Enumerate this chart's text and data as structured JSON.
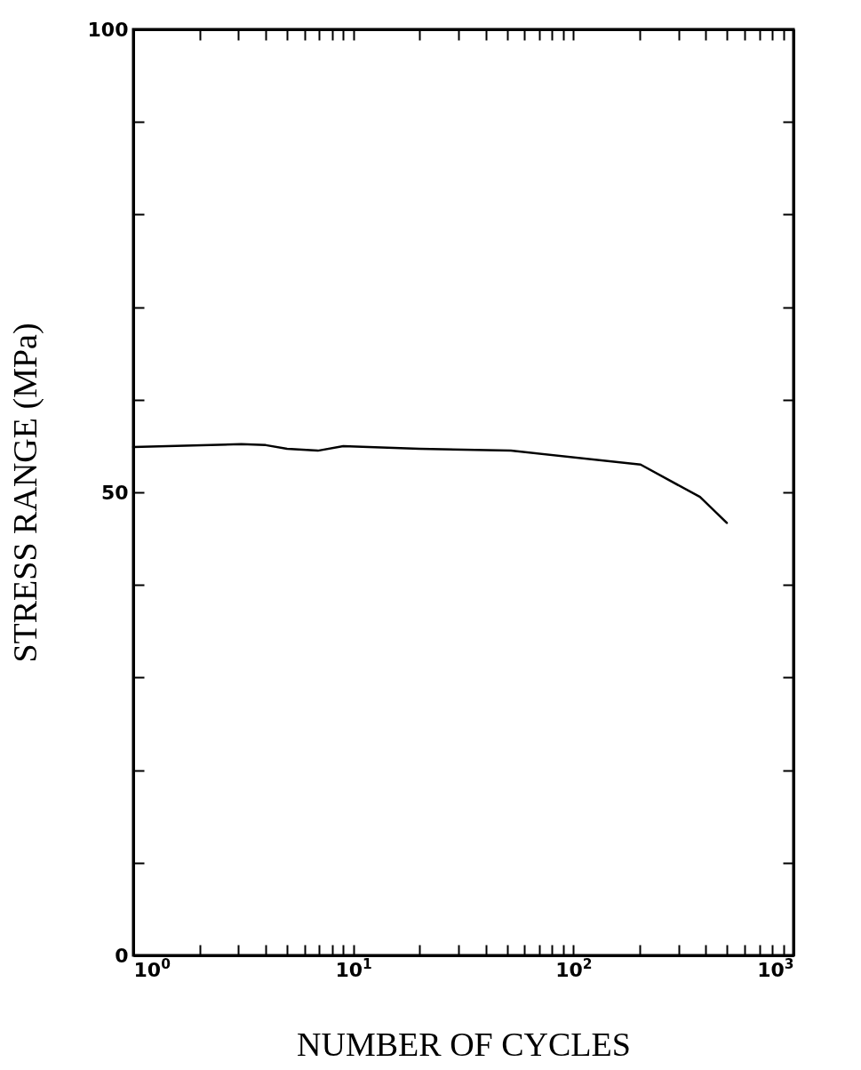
{
  "chart_data": {
    "type": "line",
    "xlabel": "NUMBER OF CYCLES",
    "ylabel": "STRESS RANGE (MPa)",
    "log": "x",
    "grid": false,
    "marker": "none",
    "line_style": "solid",
    "x": [
      1,
      3.1,
      4,
      5,
      6.9,
      9,
      20,
      52,
      202,
      376,
      498
    ],
    "series": [
      {
        "color": "#000000",
        "values": [
          54.9,
          55.2,
          55.1,
          54.7,
          54.5,
          55.0,
          54.7,
          54.5,
          53.0,
          49.5,
          46.7
        ]
      }
    ],
    "xlim": [
      1,
      1000
    ],
    "ylim": [
      0,
      100
    ],
    "xticks": [
      {
        "value": 1,
        "label": "10$^{0}$"
      },
      {
        "value": 2,
        "label": null
      },
      {
        "value": 3,
        "label": null
      },
      {
        "value": 4,
        "label": null
      },
      {
        "value": 5,
        "label": null
      },
      {
        "value": 6,
        "label": null
      },
      {
        "value": 7,
        "label": null
      },
      {
        "value": 8,
        "label": null
      },
      {
        "value": 9,
        "label": null
      },
      {
        "value": 10,
        "label": "10$^{1}$"
      },
      {
        "value": 20,
        "label": null
      },
      {
        "value": 30,
        "label": null
      },
      {
        "value": 40,
        "label": null
      },
      {
        "value": 50,
        "label": null
      },
      {
        "value": 60,
        "label": null
      },
      {
        "value": 70,
        "label": null
      },
      {
        "value": 80,
        "label": null
      },
      {
        "value": 90,
        "label": null
      },
      {
        "value": 100,
        "label": "10$^{2}$"
      },
      {
        "value": 200,
        "label": null
      },
      {
        "value": 300,
        "label": null
      },
      {
        "value": 400,
        "label": null
      },
      {
        "value": 500,
        "label": null
      },
      {
        "value": 600,
        "label": null
      },
      {
        "value": 700,
        "label": null
      },
      {
        "value": 800,
        "label": null
      },
      {
        "value": 900,
        "label": null
      },
      {
        "value": 1000,
        "label": "10$^{3}$"
      }
    ],
    "yticks": [
      0,
      {
        "value": 10,
        "label": null
      },
      {
        "value": 20,
        "label": null
      },
      {
        "value": 30,
        "label": null
      },
      {
        "value": 40,
        "label": null
      },
      50,
      {
        "value": 60,
        "label": null
      },
      {
        "value": 70,
        "label": null
      },
      {
        "value": 80,
        "label": null
      },
      {
        "value": 90,
        "label": null
      },
      100
    ]
  }
}
